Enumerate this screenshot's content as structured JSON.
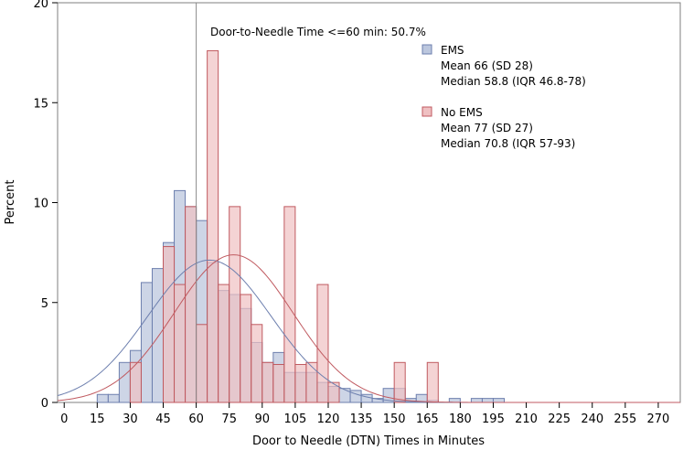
{
  "chart_data": {
    "type": "bar",
    "title": "",
    "xlabel": "Door to Needle (DTN) Times in Minutes",
    "ylabel": "Percent",
    "xlim": [
      -3,
      280
    ],
    "ylim": [
      0,
      20
    ],
    "xticks": [
      0,
      15,
      30,
      45,
      60,
      75,
      90,
      105,
      120,
      135,
      150,
      165,
      180,
      195,
      210,
      225,
      240,
      255,
      270
    ],
    "yticks": [
      0,
      5,
      10,
      15,
      20
    ],
    "bin_width": 5,
    "reference_line": {
      "x": 60,
      "label": "Door-to-Needle Time <=60 min: 50.7%"
    },
    "series": [
      {
        "name": "EMS",
        "color": "#bcc7de",
        "edge_color": "#6d7fae",
        "bins": [
          [
            15,
            0.4
          ],
          [
            20,
            0.4
          ],
          [
            25,
            2.0
          ],
          [
            30,
            2.6
          ],
          [
            35,
            6.0
          ],
          [
            40,
            6.7
          ],
          [
            45,
            8.0
          ],
          [
            50,
            10.6
          ],
          [
            55,
            9.8
          ],
          [
            60,
            9.1
          ],
          [
            65,
            7.0
          ],
          [
            70,
            5.6
          ],
          [
            75,
            5.4
          ],
          [
            80,
            4.7
          ],
          [
            85,
            3.0
          ],
          [
            90,
            2.0
          ],
          [
            95,
            2.5
          ],
          [
            100,
            1.5
          ],
          [
            105,
            1.5
          ],
          [
            110,
            1.5
          ],
          [
            115,
            1.0
          ],
          [
            120,
            0.8
          ],
          [
            125,
            0.7
          ],
          [
            130,
            0.6
          ],
          [
            135,
            0.4
          ],
          [
            140,
            0.2
          ],
          [
            145,
            0.7
          ],
          [
            150,
            0.7
          ],
          [
            155,
            0.2
          ],
          [
            160,
            0.4
          ],
          [
            165,
            0.1
          ],
          [
            175,
            0.2
          ],
          [
            185,
            0.2
          ],
          [
            190,
            0.2
          ],
          [
            195,
            0.2
          ]
        ],
        "normal_curve": {
          "mean": 66,
          "sd": 28
        },
        "legend": [
          "EMS",
          "Mean 66 (SD 28)",
          "Median 58.8 (IQR 46.8-78)"
        ]
      },
      {
        "name": "No EMS",
        "color": "#efc0c2",
        "edge_color": "#c05a60",
        "bins": [
          [
            30,
            2.0
          ],
          [
            45,
            7.8
          ],
          [
            50,
            5.9
          ],
          [
            55,
            9.8
          ],
          [
            60,
            3.9
          ],
          [
            65,
            17.6
          ],
          [
            70,
            5.9
          ],
          [
            75,
            9.8
          ],
          [
            80,
            5.4
          ],
          [
            85,
            3.9
          ],
          [
            90,
            2.0
          ],
          [
            95,
            1.9
          ],
          [
            100,
            9.8
          ],
          [
            105,
            1.9
          ],
          [
            110,
            2.0
          ],
          [
            115,
            5.9
          ],
          [
            120,
            1.0
          ],
          [
            150,
            2.0
          ],
          [
            165,
            2.0
          ]
        ],
        "normal_curve": {
          "mean": 77,
          "sd": 27
        },
        "legend": [
          "No EMS",
          "Mean 77 (SD 27)",
          "Median 70.8 (IQR 57-93)"
        ]
      }
    ],
    "legend_position": "top-right"
  }
}
